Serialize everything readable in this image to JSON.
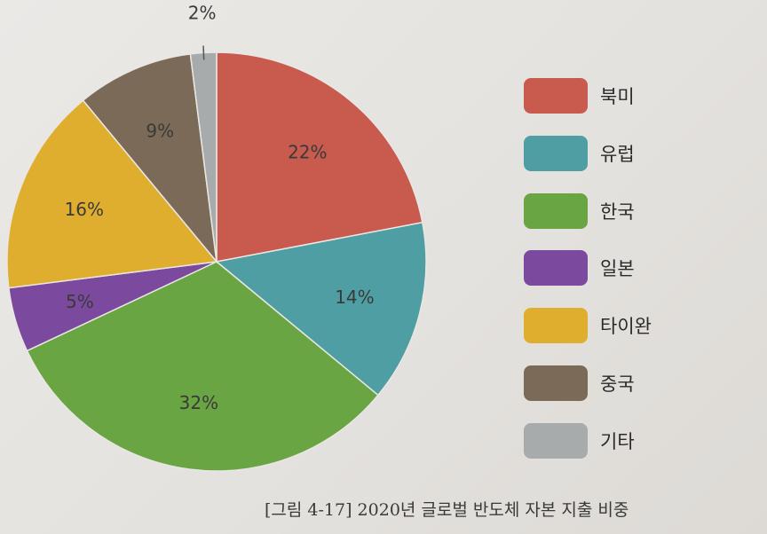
{
  "chart_data": {
    "type": "pie",
    "title": "",
    "categories": [
      "북미",
      "유럽",
      "한국",
      "일본",
      "타이완",
      "중국",
      "기타"
    ],
    "values": [
      22,
      14,
      32,
      5,
      16,
      9,
      2
    ],
    "labels": [
      "22%",
      "14%",
      "32%",
      "5%",
      "16%",
      "9%",
      "2%"
    ],
    "colors": [
      "#c85a4e",
      "#4f9ea3",
      "#6aa544",
      "#7b4a9e",
      "#e0ae2e",
      "#7c6a58",
      "#a8abac"
    ],
    "legend_position": "right"
  },
  "caption": "[그림 4-17] 2020년 글로벌 반도체 자본 지출 비중"
}
